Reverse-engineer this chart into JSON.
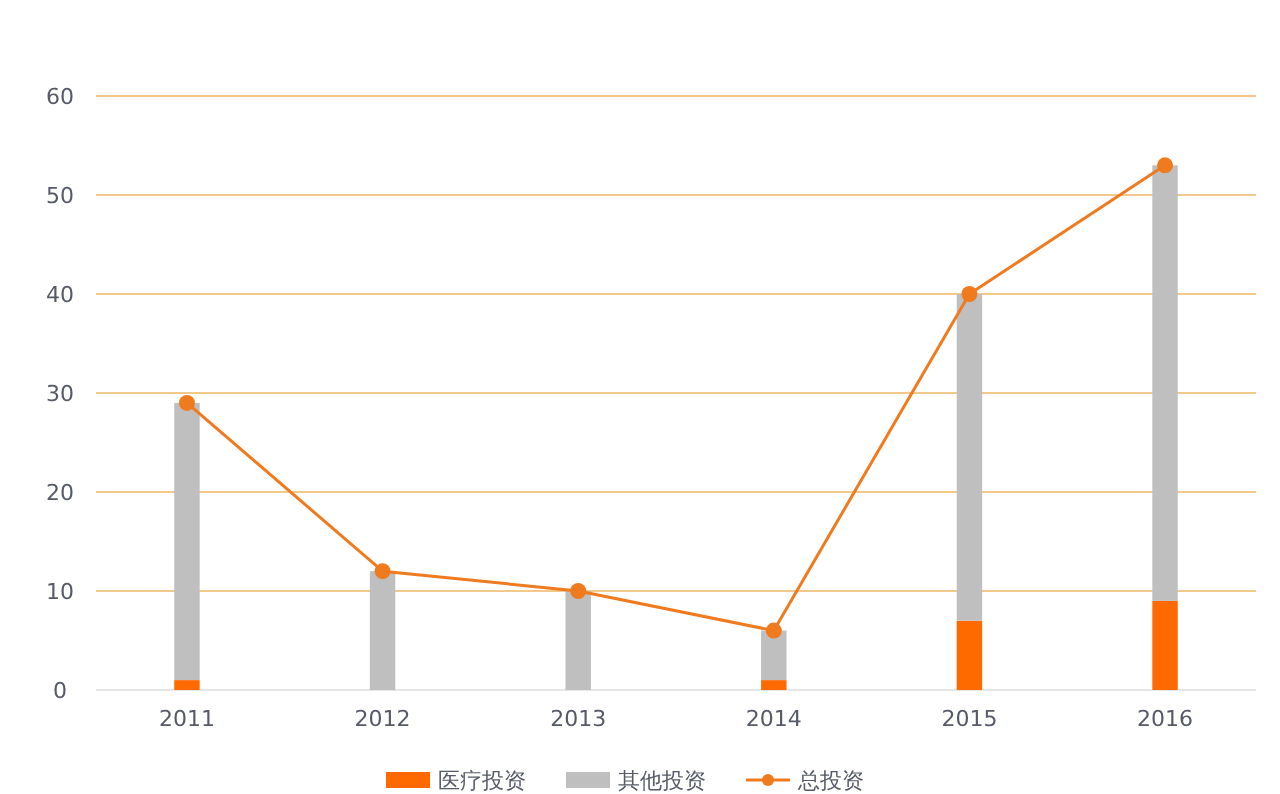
{
  "chart_data": {
    "type": "bar",
    "stacked": true,
    "categories": [
      "2011",
      "2012",
      "2013",
      "2014",
      "2015",
      "2016"
    ],
    "series": [
      {
        "name": "医疗投资",
        "color": "#ff6a00",
        "values": [
          1,
          0,
          0,
          1,
          7,
          9
        ]
      },
      {
        "name": "其他投资",
        "color": "#bfbfbf",
        "values": [
          28,
          12,
          10,
          5,
          33,
          44
        ]
      },
      {
        "name": "总投资",
        "type": "line",
        "color": "#f07a1e",
        "marker": "circle",
        "values": [
          29,
          12,
          10,
          6,
          40,
          53
        ]
      }
    ],
    "ylim": [
      0,
      60
    ],
    "yticks": [
      0,
      10,
      20,
      30,
      40,
      50,
      60
    ],
    "grid": "y",
    "legend": "bottom"
  }
}
